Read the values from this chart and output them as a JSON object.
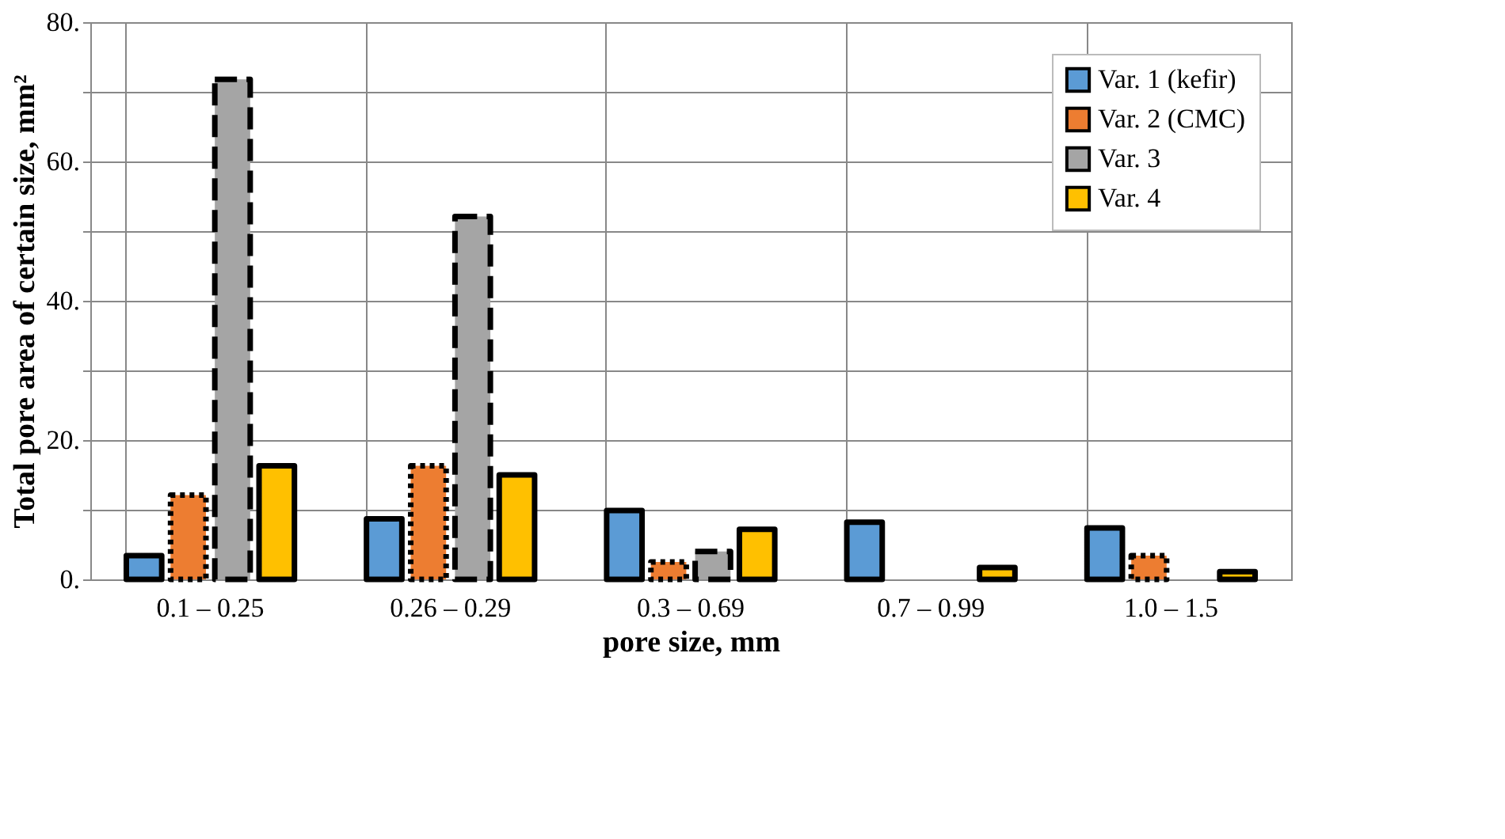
{
  "chart_data": {
    "type": "bar",
    "xlabel": "pore size, mm",
    "ylabel": "Total pore area of certain size, mm²",
    "categories": [
      "0.1 – 0.25",
      "0.26 – 0.29",
      "0.3 – 0.69",
      "0.7 – 0.99",
      "1.0 – 1.5"
    ],
    "series": [
      {
        "name": "Var. 1 (kefir)",
        "color": "#5b9bd5",
        "line_style": "solid",
        "values": [
          3.4,
          8.7,
          9.9,
          8.2,
          7.4
        ]
      },
      {
        "name": "Var. 2 (CMC)",
        "color": "#ed7d31",
        "line_style": "dotted",
        "values": [
          12.1,
          16.3,
          2.5,
          null,
          3.4
        ]
      },
      {
        "name": "Var. 3",
        "color": "#a5a5a5",
        "line_style": "dashed",
        "values": [
          71.8,
          52.1,
          4.0,
          null,
          null
        ]
      },
      {
        "name": "Var. 4",
        "color": "#ffc000",
        "line_style": "solid",
        "values": [
          16.3,
          15.0,
          7.2,
          1.7,
          1.1
        ]
      }
    ],
    "ylim": [
      0,
      80
    ],
    "yticks": [
      {
        "value": 0,
        "label": "0."
      },
      {
        "value": 10,
        "label": null
      },
      {
        "value": 20,
        "label": "20."
      },
      {
        "value": 30,
        "label": null
      },
      {
        "value": 40,
        "label": "40."
      },
      {
        "value": 50,
        "label": null
      },
      {
        "value": 60,
        "label": "60."
      },
      {
        "value": 70,
        "label": null
      },
      {
        "value": 80,
        "label": "80."
      }
    ],
    "grid": true,
    "legend": "top right"
  }
}
